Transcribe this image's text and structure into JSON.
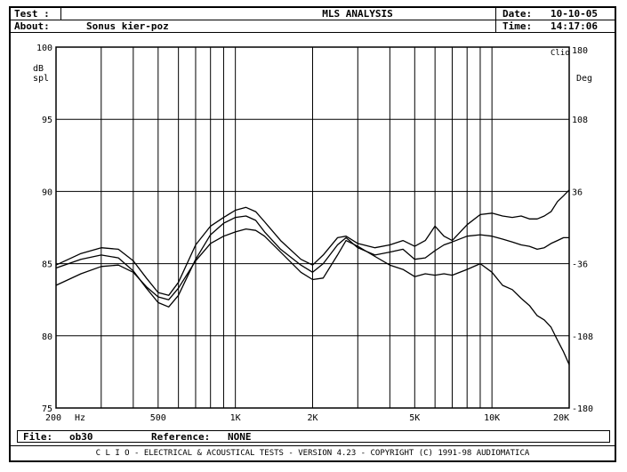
{
  "header": {
    "test_label": "Test :",
    "about_label": "About:",
    "about_value": "Sonus kier-poz",
    "title": "MLS ANALYSIS",
    "date_label": "Date:",
    "date_value": "10-10-05",
    "time_label": "Time:",
    "time_value": "14:17:06"
  },
  "file": {
    "file_label": "File:",
    "file_value": "ob30",
    "reference_label": "Reference:",
    "reference_value": "NONE"
  },
  "footer": {
    "text": "C L I O  -  ELECTRICAL & ACOUSTICAL TESTS  -  VERSION 4.23  -  COPYRIGHT (C) 1991-98 AUDIOMATICA"
  },
  "chart_data": {
    "type": "line",
    "x_scale": "log",
    "xlim": [
      200,
      20000
    ],
    "ylim": [
      75,
      100
    ],
    "y2lim": [
      -180,
      180
    ],
    "grid": true,
    "ylabel": "dB spl",
    "y2label": "Deg",
    "corner_label": "Clio",
    "x_tick_labels": [
      {
        "value": 200,
        "label": "200"
      },
      {
        "value": 500,
        "label": "500"
      },
      {
        "value": 1000,
        "label": "1K"
      },
      {
        "value": 2000,
        "label": "2K"
      },
      {
        "value": 5000,
        "label": "5K"
      },
      {
        "value": 10000,
        "label": "10K"
      },
      {
        "value": 20000,
        "label": "20K"
      }
    ],
    "x_unit_label": "Hz",
    "x_grid": [
      300,
      400,
      500,
      600,
      700,
      800,
      900,
      1000,
      2000,
      3000,
      4000,
      5000,
      6000,
      7000,
      8000,
      9000,
      10000
    ],
    "y_ticks": [
      75,
      80,
      85,
      90,
      95,
      100
    ],
    "y2_ticks": [
      -180,
      -108,
      -36,
      36,
      108,
      180
    ],
    "series": [
      {
        "color": "#000000",
        "x": [
          200,
          250,
          300,
          350,
          400,
          450,
          500,
          550,
          600,
          700,
          800,
          900,
          1000,
          1100,
          1200,
          1300,
          1500,
          1800,
          2000,
          2200,
          2500,
          2700,
          3000,
          3500,
          4000,
          4500,
          5000,
          5500,
          6000,
          6500,
          7000,
          8000,
          9000,
          10000,
          11000,
          12000,
          13000,
          14000,
          15000,
          16000,
          17000,
          18000,
          19000,
          20000
        ],
        "y": [
          84.9,
          85.7,
          86.1,
          86.0,
          85.2,
          84.0,
          83.0,
          82.8,
          83.7,
          86.3,
          87.6,
          88.2,
          88.7,
          88.9,
          88.6,
          87.9,
          86.6,
          85.3,
          84.9,
          85.6,
          86.8,
          86.9,
          86.4,
          86.1,
          86.3,
          86.6,
          86.2,
          86.6,
          87.6,
          86.9,
          86.6,
          87.7,
          88.4,
          88.5,
          88.3,
          88.2,
          88.3,
          88.1,
          88.1,
          88.3,
          88.6,
          89.3,
          89.7,
          90.1
        ]
      },
      {
        "color": "#000000",
        "x": [
          200,
          250,
          300,
          350,
          400,
          450,
          500,
          550,
          600,
          700,
          800,
          900,
          1000,
          1100,
          1200,
          1300,
          1500,
          1800,
          2000,
          2200,
          2500,
          2700,
          3000,
          3500,
          4000,
          4500,
          5000,
          5500,
          6000,
          6500,
          7000,
          8000,
          9000,
          10000,
          11000,
          12000,
          13000,
          14000,
          15000,
          16000,
          17000,
          18000,
          19000,
          20000
        ],
        "y": [
          84.7,
          85.3,
          85.6,
          85.4,
          84.5,
          83.3,
          82.3,
          82.0,
          82.8,
          85.3,
          87.0,
          87.8,
          88.2,
          88.3,
          88.0,
          87.2,
          86.0,
          84.9,
          84.4,
          85.0,
          86.3,
          86.8,
          86.1,
          85.6,
          85.8,
          86.0,
          85.3,
          85.4,
          85.9,
          86.3,
          86.5,
          86.9,
          87.0,
          86.9,
          86.7,
          86.5,
          86.3,
          86.2,
          86.0,
          86.1,
          86.4,
          86.6,
          86.8,
          86.8
        ]
      },
      {
        "color": "#000000",
        "x": [
          200,
          250,
          300,
          350,
          400,
          450,
          500,
          550,
          600,
          700,
          800,
          900,
          1000,
          1100,
          1200,
          1300,
          1500,
          1800,
          2000,
          2200,
          2500,
          2700,
          3000,
          3500,
          4000,
          4500,
          5000,
          5500,
          6000,
          6500,
          7000,
          8000,
          9000,
          10000,
          11000,
          12000,
          13000,
          14000,
          15000,
          16000,
          17000,
          18000,
          19000,
          20000
        ],
        "y": [
          83.5,
          84.3,
          84.8,
          84.9,
          84.4,
          83.4,
          82.7,
          82.5,
          83.3,
          85.2,
          86.4,
          86.9,
          87.2,
          87.4,
          87.3,
          86.9,
          85.8,
          84.4,
          83.9,
          84.0,
          85.6,
          86.6,
          86.2,
          85.5,
          84.9,
          84.6,
          84.1,
          84.3,
          84.2,
          84.3,
          84.2,
          84.6,
          85.0,
          84.4,
          83.5,
          83.2,
          82.6,
          82.1,
          81.4,
          81.1,
          80.6,
          79.7,
          78.9,
          78.0
        ]
      }
    ]
  }
}
